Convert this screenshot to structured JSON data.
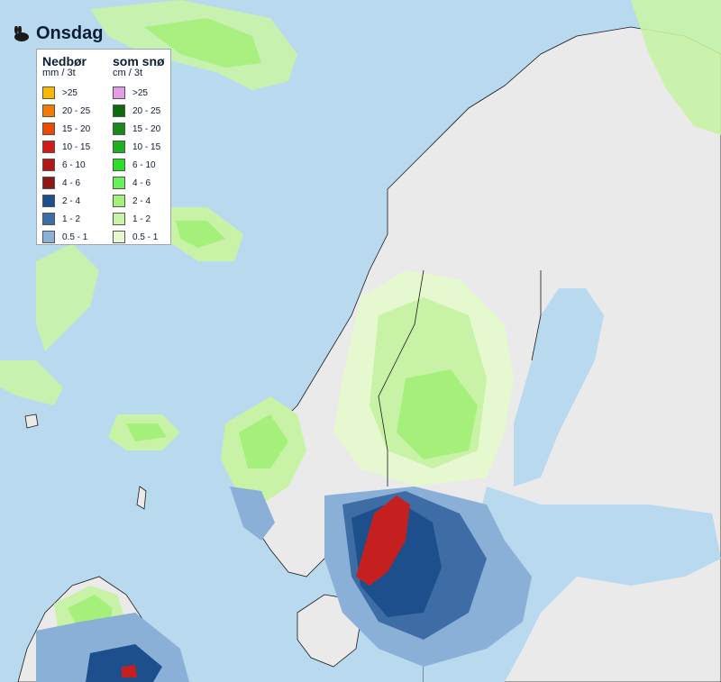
{
  "day_title": "Onsdag",
  "legend": {
    "rain": {
      "title": "Nedbør",
      "unit": "mm / 3t",
      "items": [
        {
          "label": ">25",
          "color": "#f6b800"
        },
        {
          "label": "20 - 25",
          "color": "#f07b00"
        },
        {
          "label": "15 - 20",
          "color": "#e84a00"
        },
        {
          "label": "10 - 15",
          "color": "#d21a1a"
        },
        {
          "label": "6 - 10",
          "color": "#b31616"
        },
        {
          "label": "4 - 6",
          "color": "#8f1717"
        },
        {
          "label": "2 - 4",
          "color": "#1c4f8c"
        },
        {
          "label": "1 - 2",
          "color": "#3e6da6"
        },
        {
          "label": "0.5 - 1",
          "color": "#8ab0d8"
        }
      ]
    },
    "snow": {
      "title": "som snø",
      "unit": "cm / 3t",
      "items": [
        {
          "label": ">25",
          "color": "#e29ce8"
        },
        {
          "label": "20 - 25",
          "color": "#0b6a0b"
        },
        {
          "label": "15 - 20",
          "color": "#178a17"
        },
        {
          "label": "10 - 15",
          "color": "#1fb01f"
        },
        {
          "label": "6 - 10",
          "color": "#28e028"
        },
        {
          "label": "4 - 6",
          "color": "#66f05a"
        },
        {
          "label": "2 - 4",
          "color": "#a5f07b"
        },
        {
          "label": "1 - 2",
          "color": "#c8f3a6"
        },
        {
          "label": "0.5 - 1",
          "color": "#e6f8cf"
        }
      ]
    }
  },
  "colors": {
    "sea": "#b9d9ef",
    "land": "#eaeaea",
    "coast": "#1a1a1a",
    "heavy_rain": "#c52020",
    "rain_dark": "#1c4f8c",
    "rain_mid": "#3e6da6",
    "rain_light": "#8ab0d8",
    "snow_light": "#e6f8cf",
    "snow_mid": "#c8f3a6",
    "snow_green": "#a5f07b"
  }
}
